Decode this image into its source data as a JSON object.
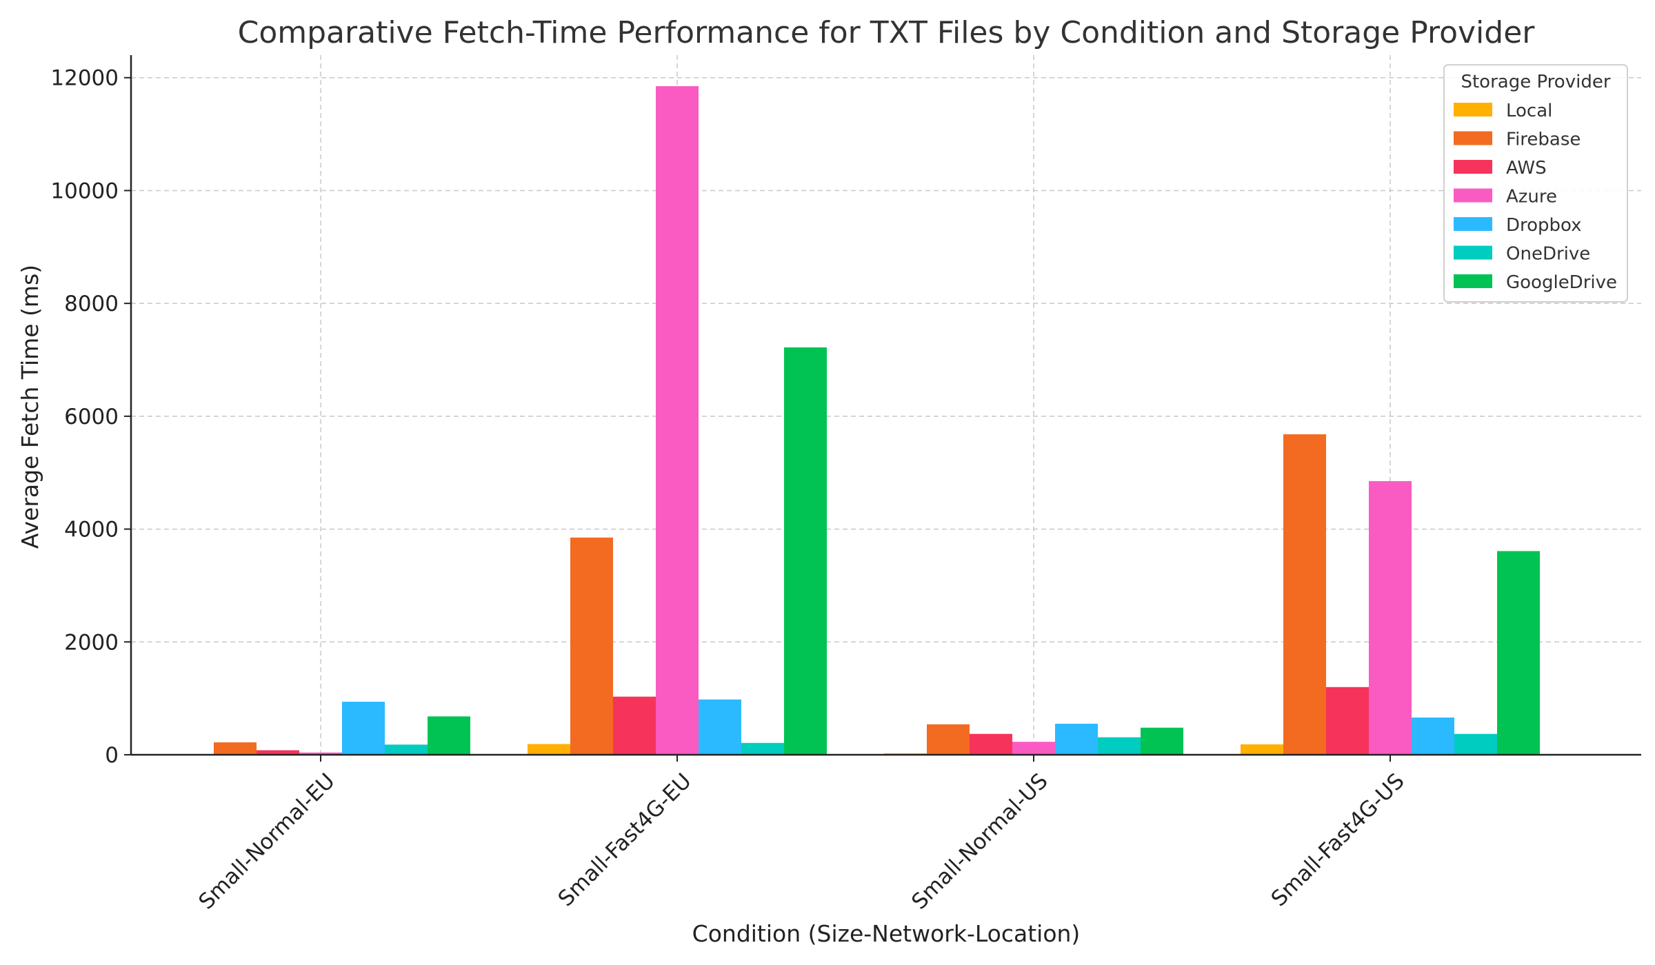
{
  "chart_data": {
    "type": "bar",
    "title": "Comparative Fetch-Time Performance for TXT Files by Condition and Storage Provider",
    "xlabel": "Condition (Size-Network-Location)",
    "ylabel": "Average Fetch Time (ms)",
    "ylim": [
      0,
      12400
    ],
    "yticks": [
      0,
      2000,
      4000,
      6000,
      8000,
      10000,
      12000
    ],
    "grid": true,
    "legend_title": "Storage Provider",
    "legend_position": "top-right",
    "categories": [
      "Small-Normal-EU",
      "Small-Fast4G-EU",
      "Small-Normal-US",
      "Small-Fast4G-US"
    ],
    "series": [
      {
        "name": "Local",
        "color": "#FFB000",
        "values": [
          5,
          190,
          25,
          185
        ]
      },
      {
        "name": "Firebase",
        "color": "#F26B21",
        "values": [
          220,
          3850,
          540,
          5680
        ]
      },
      {
        "name": "AWS",
        "color": "#F5335B",
        "values": [
          80,
          1030,
          370,
          1200
        ]
      },
      {
        "name": "Azure",
        "color": "#FA5BC3",
        "values": [
          40,
          11850,
          230,
          4850
        ]
      },
      {
        "name": "Dropbox",
        "color": "#2BBAFF",
        "values": [
          940,
          980,
          550,
          660
        ]
      },
      {
        "name": "OneDrive",
        "color": "#00CCC0",
        "values": [
          180,
          210,
          310,
          370
        ]
      },
      {
        "name": "GoogleDrive",
        "color": "#00C353",
        "values": [
          680,
          7220,
          480,
          3610
        ]
      }
    ]
  }
}
